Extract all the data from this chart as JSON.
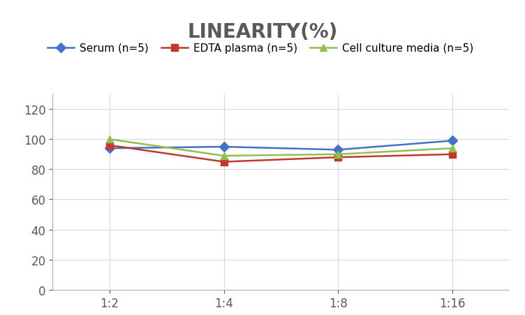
{
  "title": "LINEARITY(%)",
  "x_labels": [
    "1:2",
    "1:4",
    "1:8",
    "1:16"
  ],
  "x_positions": [
    0,
    1,
    2,
    3
  ],
  "series": [
    {
      "label": "Serum (n=5)",
      "values": [
        94,
        95,
        93,
        99
      ],
      "color": "#4472C4",
      "marker": "D",
      "linewidth": 1.8
    },
    {
      "label": "EDTA plasma (n=5)",
      "values": [
        96,
        85,
        88,
        90
      ],
      "color": "#C0392B",
      "marker": "s",
      "linewidth": 1.8
    },
    {
      "label": "Cell culture media (n=5)",
      "values": [
        100,
        89,
        90,
        94
      ],
      "color": "#92C050",
      "marker": "^",
      "linewidth": 1.8
    }
  ],
  "ylim": [
    0,
    130
  ],
  "yticks": [
    0,
    20,
    40,
    60,
    80,
    100,
    120
  ],
  "grid_color": "#D8D8D8",
  "background_color": "#FFFFFF",
  "title_fontsize": 20,
  "title_fontweight": "bold",
  "title_color": "#595959",
  "legend_fontsize": 11,
  "tick_fontsize": 12,
  "tick_color": "#595959"
}
